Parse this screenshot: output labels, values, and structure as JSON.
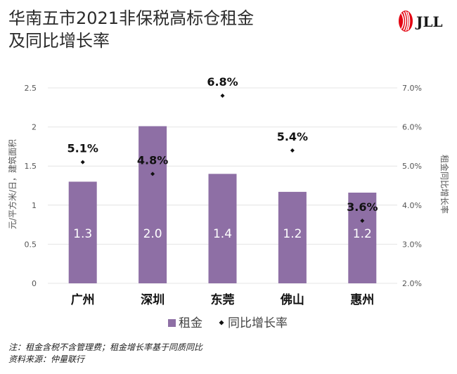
{
  "header": {
    "title_line1": "华南五市2021非保税高标仓租金",
    "title_line2": "及同比增长率"
  },
  "logo": {
    "icon": "jll-swirl-icon",
    "text": "JLL",
    "color": "#e30613"
  },
  "chart_data": {
    "type": "bar",
    "categories": [
      "广州",
      "深圳",
      "东莞",
      "佛山",
      "惠州"
    ],
    "series": [
      {
        "name": "租金",
        "type": "bar",
        "axis": "left",
        "values": [
          1.3,
          2.0,
          1.4,
          1.2,
          1.2
        ],
        "labels": [
          "1.3",
          "2.0",
          "1.4",
          "1.2",
          "1.2"
        ],
        "actual_heights": [
          1.3,
          2.01,
          1.4,
          1.17,
          1.16
        ],
        "color": "#8e6fa5"
      },
      {
        "name": "同比增长率",
        "type": "scatter",
        "axis": "right",
        "values": [
          5.1,
          4.8,
          6.8,
          5.4,
          3.6
        ],
        "labels": [
          "5.1%",
          "4.8%",
          "6.8%",
          "5.4%",
          "3.6%"
        ],
        "color": "#111111"
      }
    ],
    "ylabel": "元/平方米/日，建筑面积",
    "y2label": "租金同比增长率",
    "ylim": [
      0,
      2.5
    ],
    "y2lim": [
      2.0,
      7.0
    ],
    "yticks": [
      "0",
      "0.5",
      "1",
      "1.5",
      "2",
      "2.5"
    ],
    "y2ticks": [
      "2.0%",
      "3.0%",
      "4.0%",
      "5.0%",
      "6.0%",
      "7.0%"
    ],
    "grid": true,
    "legend": "bottom-center"
  },
  "footer": {
    "note": "注：租金含税不含管理费；租金增长率基于同质同比",
    "source": "资料来源：仲量联行"
  }
}
